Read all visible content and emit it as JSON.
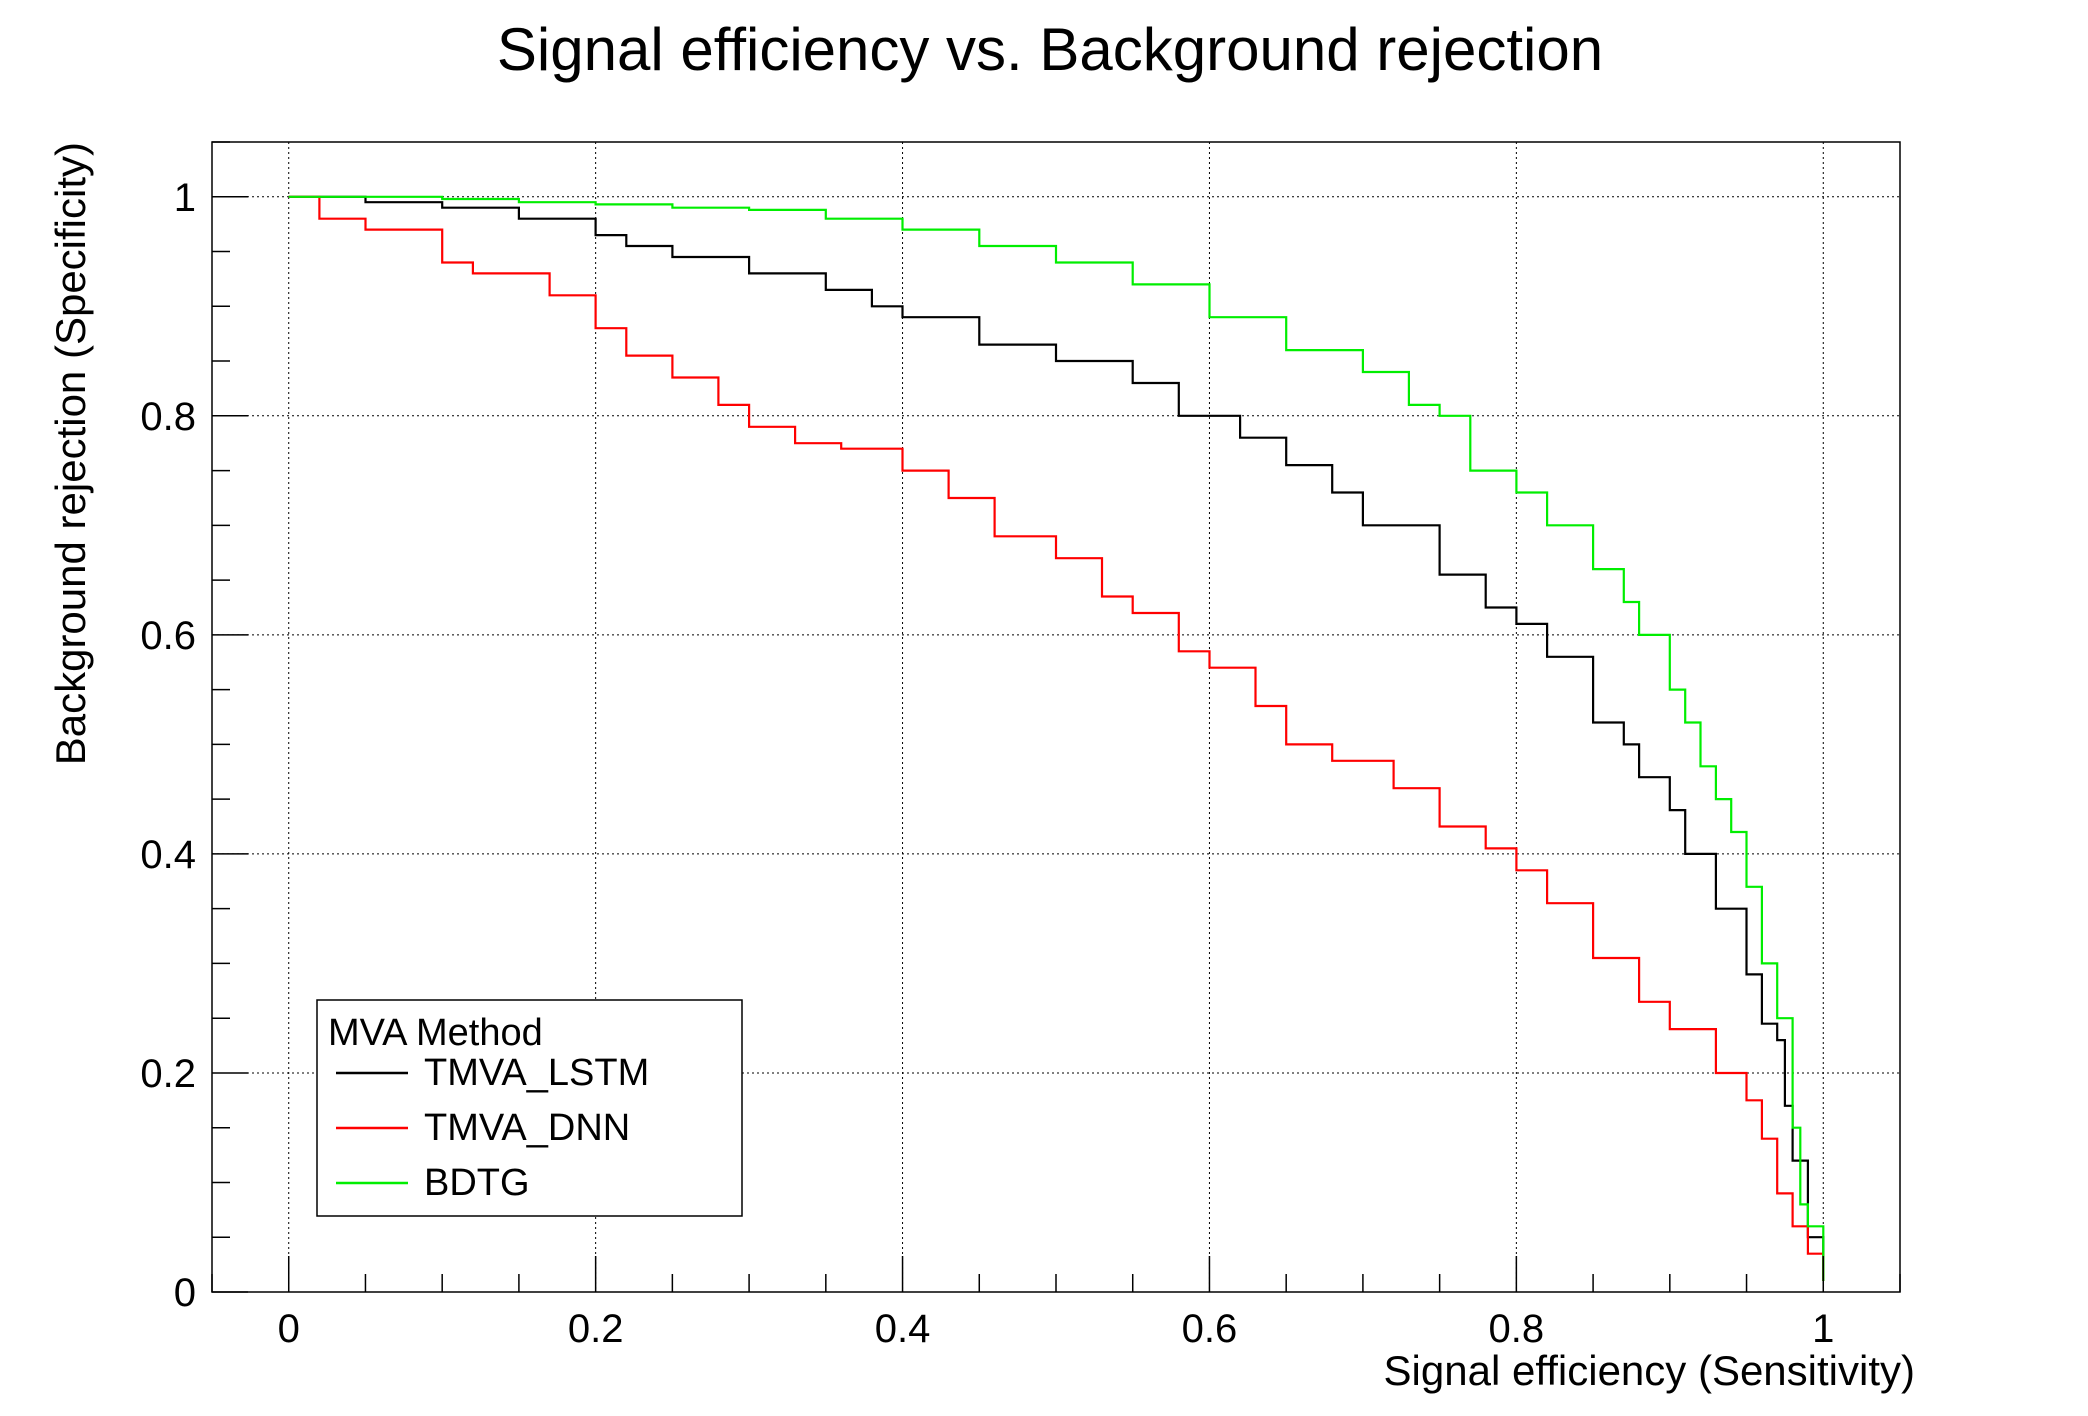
{
  "chart_data": {
    "type": "line",
    "title": "Signal efficiency vs. Background rejection",
    "xlabel": "Signal efficiency (Sensitivity)",
    "ylabel": "Background rejection (Specificity)",
    "xlim": [
      -0.05,
      1.05
    ],
    "ylim": [
      0,
      1.05
    ],
    "x_ticks": [
      0,
      0.2,
      0.4,
      0.6,
      0.8,
      1
    ],
    "x_tick_labels": [
      "0",
      "0.2",
      "0.4",
      "0.6",
      "0.8",
      "1"
    ],
    "y_ticks": [
      0,
      0.2,
      0.4,
      0.6,
      0.8,
      1
    ],
    "y_tick_labels": [
      "0",
      "0.2",
      "0.4",
      "0.6",
      "0.8",
      "1"
    ],
    "grid": true,
    "legend": {
      "title": "MVA Method",
      "placement": "bottom-left"
    },
    "series": [
      {
        "name": "TMVA_LSTM",
        "color": "#000000",
        "x": [
          0,
          0.04,
          0.05,
          0.1,
          0.15,
          0.2,
          0.22,
          0.25,
          0.3,
          0.35,
          0.38,
          0.4,
          0.45,
          0.5,
          0.55,
          0.58,
          0.62,
          0.65,
          0.68,
          0.7,
          0.75,
          0.78,
          0.8,
          0.82,
          0.85,
          0.87,
          0.88,
          0.9,
          0.91,
          0.93,
          0.95,
          0.96,
          0.97,
          0.975,
          0.98,
          0.99,
          1.0
        ],
        "y": [
          1.0,
          1.0,
          0.995,
          0.99,
          0.98,
          0.965,
          0.955,
          0.945,
          0.93,
          0.915,
          0.9,
          0.89,
          0.865,
          0.85,
          0.83,
          0.8,
          0.78,
          0.755,
          0.73,
          0.7,
          0.655,
          0.625,
          0.61,
          0.58,
          0.52,
          0.5,
          0.47,
          0.44,
          0.4,
          0.35,
          0.29,
          0.245,
          0.23,
          0.17,
          0.12,
          0.05,
          0.01
        ]
      },
      {
        "name": "TMVA_DNN",
        "color": "#ff0000",
        "x": [
          0,
          0.02,
          0.05,
          0.1,
          0.12,
          0.15,
          0.17,
          0.2,
          0.22,
          0.25,
          0.28,
          0.3,
          0.33,
          0.36,
          0.4,
          0.43,
          0.46,
          0.5,
          0.53,
          0.55,
          0.58,
          0.6,
          0.63,
          0.65,
          0.68,
          0.72,
          0.75,
          0.78,
          0.8,
          0.82,
          0.85,
          0.88,
          0.9,
          0.93,
          0.95,
          0.96,
          0.97,
          0.98,
          0.99,
          1.0
        ],
        "y": [
          1.0,
          0.98,
          0.97,
          0.94,
          0.93,
          0.93,
          0.91,
          0.88,
          0.855,
          0.835,
          0.81,
          0.79,
          0.775,
          0.77,
          0.75,
          0.725,
          0.69,
          0.67,
          0.635,
          0.62,
          0.585,
          0.57,
          0.535,
          0.5,
          0.485,
          0.46,
          0.425,
          0.405,
          0.385,
          0.355,
          0.305,
          0.265,
          0.24,
          0.2,
          0.175,
          0.14,
          0.09,
          0.06,
          0.035,
          0.01
        ]
      },
      {
        "name": "BDTG",
        "color": "#00ee00",
        "x": [
          0,
          0.05,
          0.1,
          0.15,
          0.2,
          0.25,
          0.3,
          0.35,
          0.4,
          0.45,
          0.5,
          0.55,
          0.6,
          0.65,
          0.7,
          0.73,
          0.75,
          0.77,
          0.8,
          0.82,
          0.85,
          0.87,
          0.88,
          0.9,
          0.91,
          0.92,
          0.93,
          0.94,
          0.95,
          0.96,
          0.97,
          0.98,
          0.985,
          0.99,
          1.0
        ],
        "y": [
          1.0,
          1.0,
          0.998,
          0.995,
          0.993,
          0.99,
          0.988,
          0.98,
          0.97,
          0.955,
          0.94,
          0.92,
          0.89,
          0.86,
          0.84,
          0.81,
          0.8,
          0.75,
          0.73,
          0.7,
          0.66,
          0.63,
          0.6,
          0.55,
          0.52,
          0.48,
          0.45,
          0.42,
          0.37,
          0.3,
          0.25,
          0.15,
          0.08,
          0.06,
          0.01
        ]
      }
    ]
  }
}
